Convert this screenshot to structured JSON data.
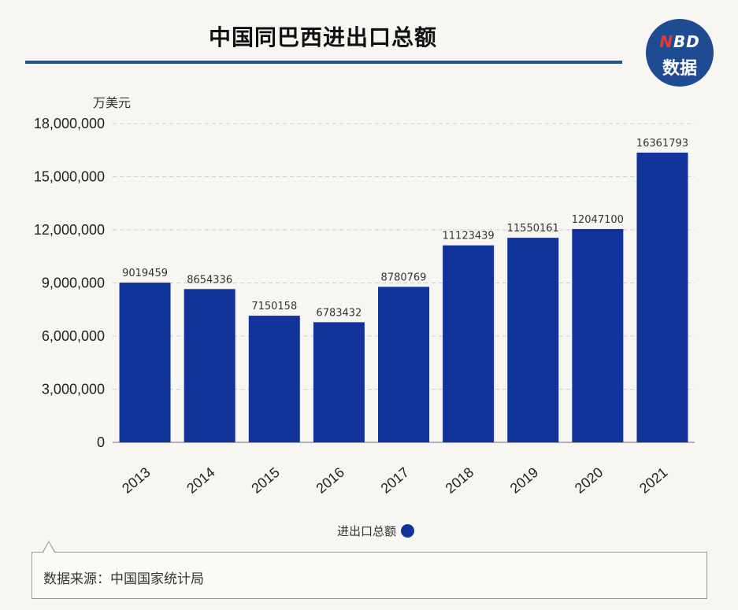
{
  "title": "中国同巴西进出口总额",
  "logo": {
    "top_n": "N",
    "top_rest": "BD",
    "bottom": "数据"
  },
  "unit": "万美元",
  "legend_label": "进出口总额",
  "source": "数据来源：中国国家统计局",
  "colors": {
    "bar": "#11339a",
    "title_rule": "#1e4f9c",
    "logo_bg": "#1f4b93",
    "background": "#f8f6f2"
  },
  "chart_data": {
    "type": "bar",
    "title": "中国同巴西进出口总额",
    "ylabel": "万美元",
    "xlabel": "",
    "categories": [
      "2013",
      "2014",
      "2015",
      "2016",
      "2017",
      "2018",
      "2019",
      "2020",
      "2021"
    ],
    "series": [
      {
        "name": "进出口总额",
        "values": [
          9019459,
          8654336,
          7150158,
          6783432,
          8780769,
          11123439,
          11550161,
          12047100,
          16361793
        ]
      }
    ],
    "ylim": [
      0,
      18000000
    ],
    "yticks": [
      0,
      3000000,
      6000000,
      9000000,
      12000000,
      15000000,
      18000000
    ],
    "ytick_labels": [
      "0",
      "3,000,000",
      "6,000,000",
      "9,000,000",
      "12,000,000",
      "15,000,000",
      "18,000,000"
    ],
    "grid": true,
    "legend": "bottom-center"
  }
}
